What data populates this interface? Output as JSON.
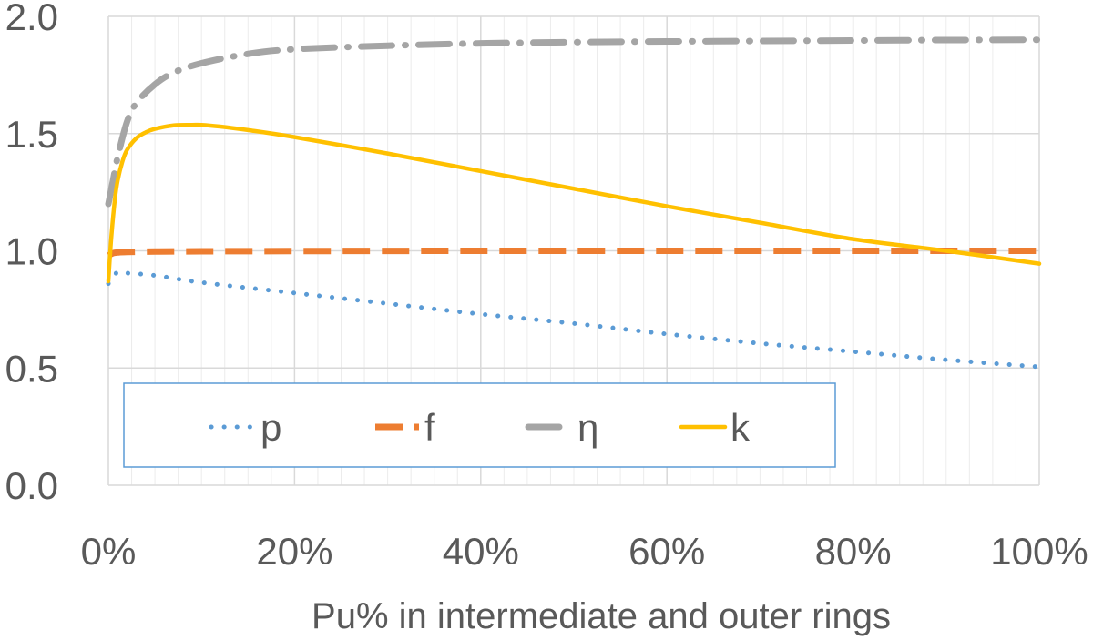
{
  "chart_data": {
    "type": "line",
    "title": "",
    "xlabel": "Pu% in intermediate and outer rings",
    "ylabel": "",
    "xlim": [
      0,
      100
    ],
    "ylim": [
      0,
      2.0
    ],
    "x_ticks": [
      0,
      20,
      40,
      60,
      80,
      100
    ],
    "x_tick_labels": [
      "0%",
      "20%",
      "40%",
      "60%",
      "80%",
      "100%"
    ],
    "y_ticks": [
      0,
      0.5,
      1.0,
      1.5,
      2.0
    ],
    "y_tick_labels": [
      "0.0",
      "0.5",
      "1.0",
      "1.5",
      "2.0"
    ],
    "grid": true,
    "legend_position": "lower-left inside",
    "series": [
      {
        "name": "p",
        "style": "dotted",
        "color": "#5B9BD5",
        "x": [
          0,
          1,
          2,
          5,
          10,
          20,
          30,
          40,
          50,
          60,
          70,
          80,
          90,
          100
        ],
        "y": [
          0.86,
          0.91,
          0.905,
          0.895,
          0.865,
          0.82,
          0.775,
          0.73,
          0.69,
          0.645,
          0.605,
          0.57,
          0.535,
          0.505
        ]
      },
      {
        "name": "f",
        "style": "dashed",
        "color": "#ED7D31",
        "x": [
          0,
          0.5,
          1,
          2,
          5,
          10,
          20,
          40,
          60,
          80,
          100
        ],
        "y": [
          0.98,
          0.99,
          0.993,
          0.995,
          0.997,
          0.998,
          0.999,
          1.0,
          1.0,
          1.0,
          1.0
        ]
      },
      {
        "name": "η",
        "style": "dash-dot",
        "color": "#A5A5A5",
        "x": [
          0,
          0.5,
          1,
          2,
          3,
          5,
          7,
          10,
          15,
          20,
          30,
          40,
          50,
          60,
          70,
          80,
          90,
          100
        ],
        "y": [
          1.2,
          1.3,
          1.4,
          1.55,
          1.63,
          1.71,
          1.76,
          1.8,
          1.84,
          1.86,
          1.875,
          1.885,
          1.89,
          1.893,
          1.895,
          1.897,
          1.899,
          1.9
        ]
      },
      {
        "name": "k",
        "style": "solid",
        "color": "#FFC000",
        "x": [
          0,
          0.3,
          0.7,
          1,
          1.5,
          2,
          3,
          4,
          5,
          7,
          9,
          10,
          12,
          15,
          20,
          30,
          40,
          50,
          60,
          70,
          80,
          90,
          100
        ],
        "y": [
          0.87,
          1.05,
          1.22,
          1.3,
          1.38,
          1.43,
          1.48,
          1.505,
          1.52,
          1.535,
          1.537,
          1.537,
          1.53,
          1.515,
          1.485,
          1.415,
          1.34,
          1.265,
          1.19,
          1.12,
          1.05,
          1.0,
          0.945
        ]
      }
    ]
  }
}
